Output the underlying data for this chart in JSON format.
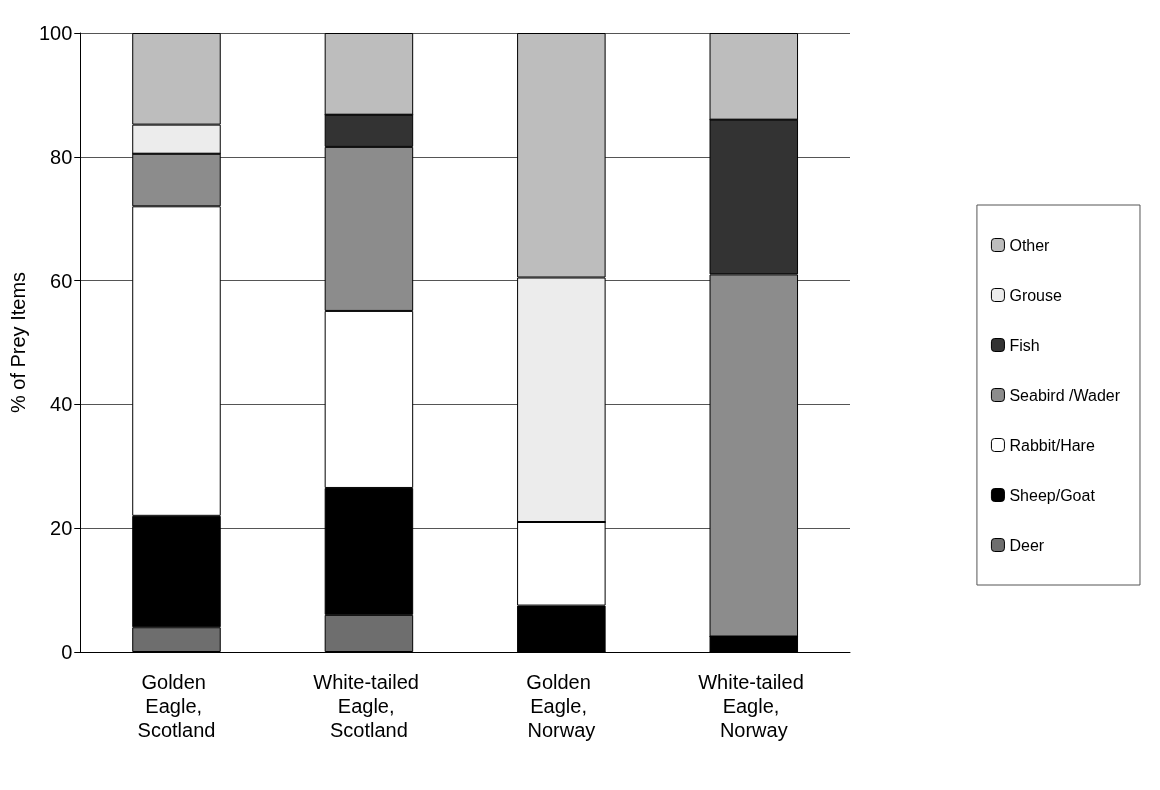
{
  "chart_data": {
    "type": "bar",
    "stacked": true,
    "ylabel": "% of Prey Items",
    "categories": [
      "Golden Eagle, Scotland",
      "White-tailed Eagle, Scotland",
      "Golden Eagle, Norway",
      "White-tailed Eagle, Norway"
    ],
    "series": [
      {
        "name": "Deer",
        "color": "#6e6e6e",
        "values": [
          4,
          6,
          0,
          0
        ]
      },
      {
        "name": "Sheep/Goat",
        "color": "#000000",
        "values": [
          18,
          20.5,
          7.5,
          2.5
        ]
      },
      {
        "name": "Rabbit/Hare",
        "color": "#ffffff",
        "values": [
          50,
          28.6,
          13.5,
          0
        ]
      },
      {
        "name": "Seabird /Wader",
        "color": "#8c8c8c",
        "values": [
          8.5,
          26.5,
          0,
          58.5
        ]
      },
      {
        "name": "Fish",
        "color": "#333333",
        "values": [
          0,
          5.2,
          0,
          25
        ]
      },
      {
        "name": "Grouse",
        "color": "#ececec",
        "values": [
          4.7,
          0,
          39.5,
          0
        ]
      },
      {
        "name": "Other",
        "color": "#bdbdbd",
        "values": [
          14.8,
          13.2,
          39.5,
          14
        ]
      }
    ],
    "ylim": [
      0,
      100
    ],
    "yticks": [
      0,
      20,
      40,
      60,
      80,
      100
    ],
    "grid": "y",
    "legend": "right"
  }
}
